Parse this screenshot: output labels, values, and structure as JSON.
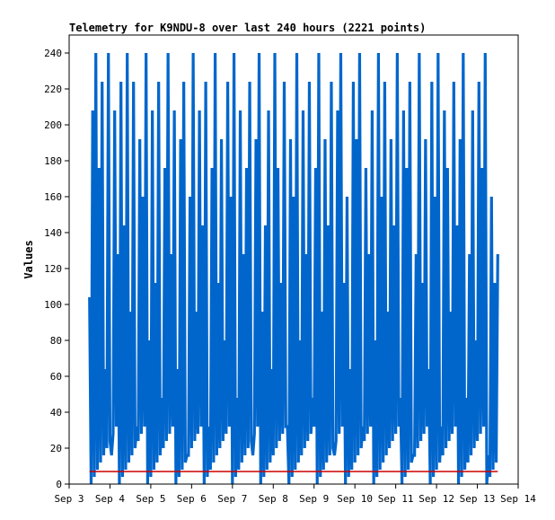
{
  "chart_data": {
    "type": "line",
    "title": "Telemetry for K9NDU-8 over last 240 hours (2221 points)",
    "xlabel": "",
    "ylabel": "Values",
    "ylim": [
      0,
      250
    ],
    "xlim": [
      "2024-09-03",
      "2024-09-14"
    ],
    "y_ticks": [
      0,
      20,
      40,
      60,
      80,
      100,
      120,
      140,
      160,
      180,
      200,
      220,
      240
    ],
    "x_ticks": [
      {
        "x": "2024-09-03",
        "label": "Sep 3"
      },
      {
        "x": "2024-09-04",
        "label": "Sep 4"
      },
      {
        "x": "2024-09-05",
        "label": "Sep 5"
      },
      {
        "x": "2024-09-06",
        "label": "Sep 6"
      },
      {
        "x": "2024-09-07",
        "label": "Sep 7"
      },
      {
        "x": "2024-09-08",
        "label": "Sep 8"
      },
      {
        "x": "2024-09-09",
        "label": "Sep 9"
      },
      {
        "x": "2024-09-10",
        "label": "Sep 10"
      },
      {
        "x": "2024-09-11",
        "label": "Sep 11"
      },
      {
        "x": "2024-09-12",
        "label": "Sep 12"
      },
      {
        "x": "2024-09-13",
        "label": "Sep 13"
      },
      {
        "x": "2024-09-14",
        "label": "Sep 14"
      }
    ],
    "grid": false,
    "legend": "none",
    "series": [
      {
        "color": "#0066cc",
        "x_start": "2024-09-03T12:00",
        "x_end": "2024-09-13T12:00",
        "values": [
          104,
          208,
          240,
          176,
          224,
          64,
          240,
          16,
          208,
          128,
          224,
          144,
          240,
          96,
          224,
          32,
          192,
          160,
          240,
          80,
          208,
          112,
          224,
          48,
          176,
          240,
          128,
          208,
          64,
          192,
          224,
          16,
          160,
          240,
          96,
          208,
          144,
          224,
          32,
          176,
          240,
          112,
          192,
          80,
          224,
          160,
          240,
          48,
          208,
          128,
          176,
          224,
          16,
          192,
          240,
          96,
          144,
          208,
          64,
          240,
          176,
          112,
          224,
          32,
          192,
          160,
          240,
          80,
          208,
          128,
          224,
          48,
          176,
          240,
          96,
          192,
          144,
          224,
          16,
          208,
          240,
          112,
          160,
          64,
          224,
          192,
          240,
          32,
          176,
          128,
          208,
          80,
          240,
          160,
          224,
          96,
          192,
          144,
          240,
          48,
          208,
          176,
          224,
          16,
          128,
          240,
          112,
          192,
          64,
          224,
          160,
          240,
          32,
          208,
          176,
          96,
          224,
          144,
          192,
          240,
          48,
          128,
          208,
          80,
          224,
          176,
          240,
          16,
          160,
          112,
          128
        ]
      },
      {
        "color": "#cc0000",
        "x_start": "2024-09-03T12:00",
        "x_end": "2024-09-13T12:00",
        "values": [
          7,
          7,
          7,
          7,
          7,
          7,
          7,
          7,
          7,
          7,
          7,
          7,
          7,
          7,
          7,
          7,
          7,
          7,
          7,
          7,
          7,
          7,
          7,
          7,
          7,
          7,
          7,
          7,
          7,
          7,
          7,
          7,
          7,
          7,
          7,
          7,
          7,
          7,
          7,
          7
        ]
      }
    ]
  }
}
